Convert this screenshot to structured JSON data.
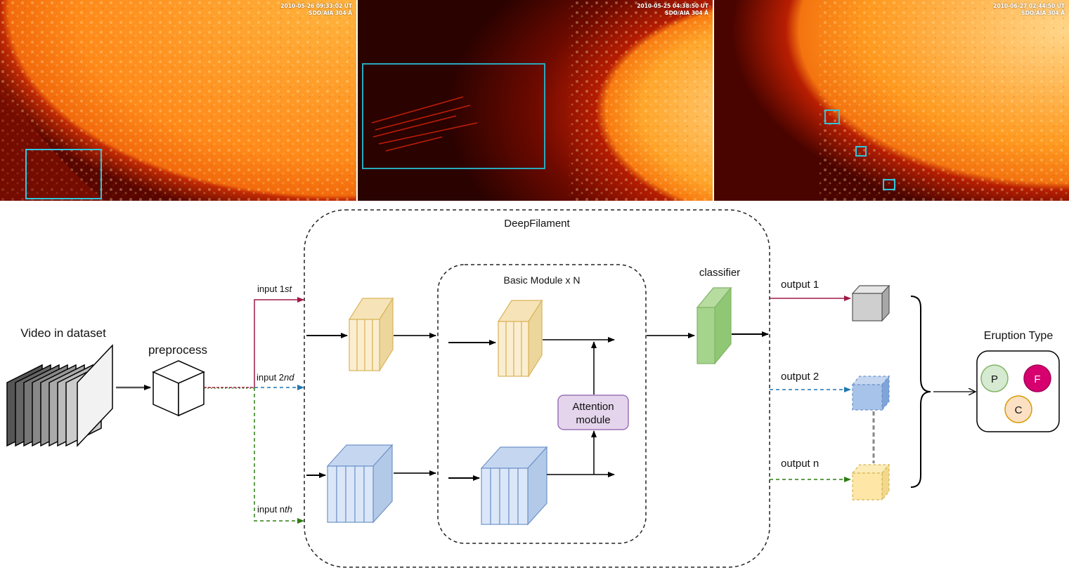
{
  "panels": [
    {
      "timestamp": "2010-05-26 09:33:02 UT",
      "instrument": "SDO/AIA 304 Å"
    },
    {
      "timestamp": "2010-05-25 04:38:50 UT",
      "instrument": "SDO/AIA 304 Å"
    },
    {
      "timestamp": "2010-06-27 02:44:50 UT",
      "instrument": "SDO/AIA 304 Å"
    }
  ],
  "diagram": {
    "video_label": "Video in dataset",
    "preprocess_label": "preprocess",
    "inputs": [
      {
        "label": "input 1",
        "suffix": "st",
        "color": "#a01845"
      },
      {
        "label": "input 2",
        "suffix": "nd",
        "color": "#1f77b4"
      },
      {
        "label": "input n",
        "suffix": "th",
        "color": "#2d7d12"
      }
    ],
    "model_label": "DeepFilament",
    "module_label": "Basic Module x N",
    "attention_label_line1": "Attention",
    "attention_label_line2": "module",
    "classifier_label": "classifier",
    "outputs": [
      {
        "label": "output 1",
        "color": "#a01845"
      },
      {
        "label": "output 2",
        "color": "#1f77b4"
      },
      {
        "label": "output n",
        "color": "#2d7d12"
      }
    ],
    "eruption_label": "Eruption Type",
    "eruption_types": [
      {
        "letter": "P",
        "color": "#d5ead0"
      },
      {
        "letter": "F",
        "color": "#d6006f"
      },
      {
        "letter": "C",
        "color": "#fbe0c4"
      }
    ]
  }
}
